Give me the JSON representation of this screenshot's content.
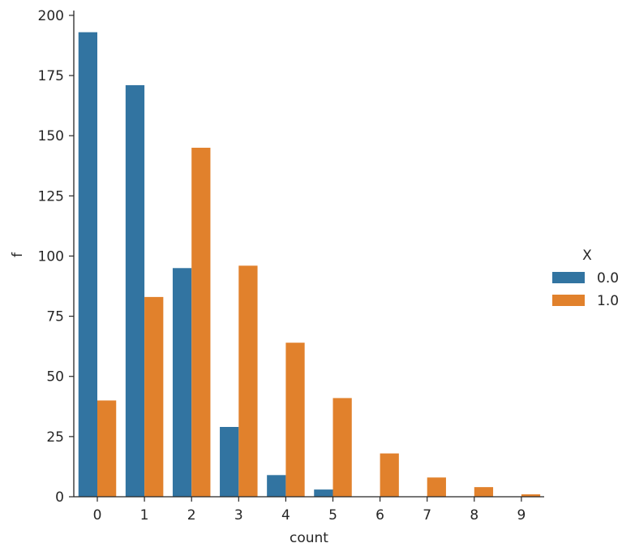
{
  "chart_data": {
    "type": "bar",
    "categories": [
      "0",
      "1",
      "2",
      "3",
      "4",
      "5",
      "6",
      "7",
      "8",
      "9"
    ],
    "series": [
      {
        "name": "0.0",
        "color": "#3274a1",
        "values": [
          193,
          171,
          95,
          29,
          9,
          3,
          0,
          0,
          0,
          0
        ]
      },
      {
        "name": "1.0",
        "color": "#e1812c",
        "values": [
          40,
          83,
          145,
          96,
          64,
          41,
          18,
          8,
          4,
          1
        ]
      }
    ],
    "xlabel": "count",
    "ylabel": "f",
    "ylim": [
      0,
      202
    ],
    "yticks": [
      0,
      25,
      50,
      75,
      100,
      125,
      150,
      175,
      200
    ],
    "grid": false,
    "legend": {
      "title": "X",
      "placement": "right"
    }
  }
}
